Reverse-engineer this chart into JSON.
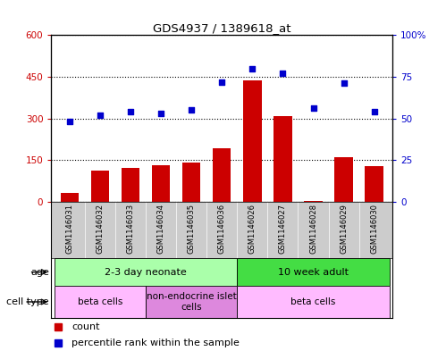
{
  "title": "GDS4937 / 1389618_at",
  "samples": [
    "GSM1146031",
    "GSM1146032",
    "GSM1146033",
    "GSM1146034",
    "GSM1146035",
    "GSM1146036",
    "GSM1146026",
    "GSM1146027",
    "GSM1146028",
    "GSM1146029",
    "GSM1146030"
  ],
  "counts": [
    32,
    112,
    122,
    132,
    142,
    192,
    438,
    308,
    4,
    162,
    128
  ],
  "percentiles": [
    48,
    52,
    54,
    53,
    55,
    72,
    80,
    77,
    56,
    71,
    54
  ],
  "ylim_left": [
    0,
    600
  ],
  "ylim_right": [
    0,
    100
  ],
  "yticks_left": [
    0,
    150,
    300,
    450,
    600
  ],
  "yticks_right": [
    0,
    25,
    50,
    75,
    100
  ],
  "ytick_labels_left": [
    "0",
    "150",
    "300",
    "450",
    "600"
  ],
  "ytick_labels_right": [
    "0",
    "25",
    "50",
    "75",
    "100%"
  ],
  "bar_color": "#cc0000",
  "dot_color": "#0000cc",
  "age_groups": [
    {
      "label": "2-3 day neonate",
      "start": 0,
      "end": 6,
      "color": "#aaffaa"
    },
    {
      "label": "10 week adult",
      "start": 6,
      "end": 11,
      "color": "#44dd44"
    }
  ],
  "cell_type_groups": [
    {
      "label": "beta cells",
      "start": 0,
      "end": 3,
      "color": "#ffbbff"
    },
    {
      "label": "non-endocrine islet\ncells",
      "start": 3,
      "end": 6,
      "color": "#dd88dd"
    },
    {
      "label": "beta cells",
      "start": 6,
      "end": 11,
      "color": "#ffbbff"
    }
  ],
  "legend_items": [
    {
      "label": "count",
      "color": "#cc0000"
    },
    {
      "label": "percentile rank within the sample",
      "color": "#0000cc"
    }
  ]
}
